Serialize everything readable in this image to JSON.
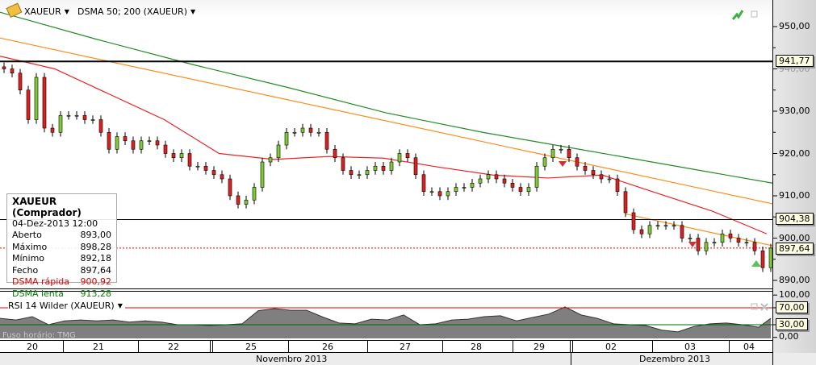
{
  "header": {
    "symbol": "XAUEUR",
    "indicator": "DSMA 50; 200 (XAUEUR)"
  },
  "colors": {
    "fast_ma": "#ee2222",
    "slow_ma": "#228b22",
    "trendline": "#ff8c1a",
    "up_candle": "#7fcc33",
    "down_candle": "#e02020",
    "rsi_fill": "#7f7f7f"
  },
  "info_box": {
    "title": "XAUEUR (Comprador)",
    "datetime": "04-Dez-2013 12:00",
    "rows": [
      {
        "label": "Aberto",
        "value": "893,00"
      },
      {
        "label": "Máximo",
        "value": "898,28"
      },
      {
        "label": "Mínimo",
        "value": "892,18"
      },
      {
        "label": "Fecho",
        "value": "897,64"
      },
      {
        "label": "DSMA rápida",
        "value": "900,92"
      },
      {
        "label": "DSMA lenta",
        "value": "913,28"
      }
    ]
  },
  "rsi": {
    "title": "RSI 14 Wilder (XAUEUR)",
    "watermark": "Fuso horário: TMG"
  },
  "price_axis": {
    "ticks": [
      "950,00",
      "940,00",
      "930,00",
      "920,00",
      "910,00",
      "900,00",
      "890,00"
    ],
    "tags": [
      "941,77",
      "904,38",
      "897,64"
    ]
  },
  "rsi_axis": {
    "ticks": [
      "100,00",
      "0,00"
    ],
    "tags": [
      "70,00",
      "30,00"
    ]
  },
  "time_axis": {
    "days": [
      "20",
      "21",
      "22",
      "25",
      "26",
      "27",
      "28",
      "29",
      "02",
      "03",
      "04"
    ],
    "months": [
      "Novembro 2013",
      "Dezembro 2013"
    ]
  },
  "chart_data": {
    "type": "candlestick",
    "ylim": [
      887,
      955
    ],
    "horizontal_lines": [
      941.77,
      904.38
    ],
    "last_close": 897.64,
    "closes": [
      940,
      939,
      935,
      928,
      938,
      926,
      925,
      929,
      929,
      929,
      928,
      928,
      925,
      921,
      924,
      923,
      921,
      923,
      923,
      922,
      920,
      919,
      920,
      917,
      917,
      916,
      915,
      914,
      910,
      908,
      909,
      912,
      918,
      919,
      922,
      925,
      925,
      926,
      925,
      925,
      921,
      919,
      916,
      915,
      915,
      916,
      917,
      916,
      918,
      920,
      919,
      915,
      911,
      911,
      910,
      911,
      912,
      912,
      913,
      914,
      915,
      914,
      913,
      912,
      911,
      912,
      917,
      919,
      921,
      921,
      919,
      917,
      916,
      915,
      914,
      914,
      911,
      906,
      902,
      901,
      903,
      903,
      903,
      903,
      900,
      900,
      897,
      899,
      899,
      901,
      900,
      899,
      899,
      897,
      893,
      897.64
    ],
    "dsma_fast": [
      943,
      940,
      934,
      928,
      920,
      918.6,
      919.3,
      918.9,
      916.8,
      914.9,
      914.2,
      914.9,
      910.6,
      906.4,
      901
    ],
    "dsma_slow": [
      953.4,
      947,
      941,
      935.5,
      929.6,
      925,
      921,
      917,
      913
    ],
    "rsi_values": [
      45,
      41,
      49,
      30,
      39,
      41,
      39,
      41,
      36,
      39,
      36,
      30,
      30,
      28,
      30,
      32,
      63,
      68,
      64,
      64,
      48,
      34,
      32,
      43,
      41,
      53,
      30,
      32,
      41,
      43,
      49,
      51,
      39,
      47,
      55,
      72,
      53,
      45,
      32,
      30,
      28,
      17,
      13,
      26,
      32,
      34,
      30,
      24,
      45
    ],
    "rsi_levels": [
      70,
      30
    ],
    "rsi_ylim": [
      0,
      100
    ]
  }
}
